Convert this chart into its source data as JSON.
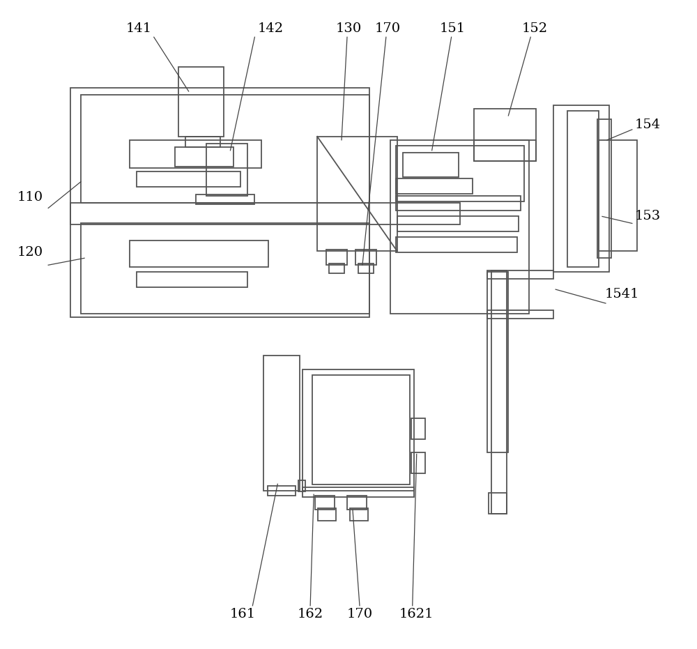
{
  "background_color": "#ffffff",
  "line_color": "#555555",
  "line_width": 1.3,
  "fig_width": 10.0,
  "fig_height": 9.31,
  "label_fontsize": 14
}
